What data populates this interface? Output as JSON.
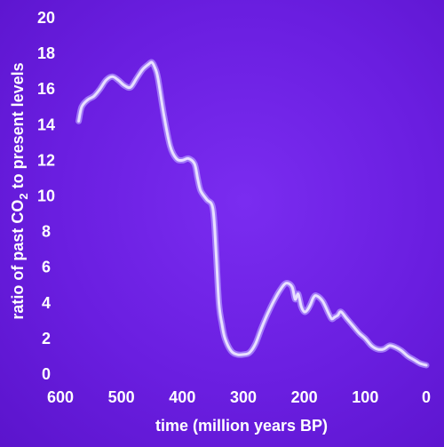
{
  "chart_data": {
    "type": "line",
    "title": "",
    "xlabel": "time (million years BP)",
    "ylabel_parts": {
      "before": "ratio of past CO",
      "subscript": "2",
      "after": " to present levels"
    },
    "xlim": [
      600,
      0
    ],
    "ylim": [
      0,
      20
    ],
    "x_ticks": [
      "600",
      "500",
      "400",
      "300",
      "200",
      "100",
      "0"
    ],
    "y_ticks": [
      "0",
      "2",
      "4",
      "6",
      "8",
      "10",
      "12",
      "14",
      "16",
      "18",
      "20"
    ],
    "grid": false,
    "legend": "none",
    "series": [
      {
        "x": [
          570,
          565,
          555,
          545,
          535,
          525,
          515,
          505,
          495,
          485,
          475,
          465,
          455,
          450,
          445,
          440,
          430,
          420,
          410,
          400,
          390,
          380,
          375,
          370,
          360,
          350,
          345,
          340,
          335,
          330,
          320,
          310,
          300,
          290,
          280,
          270,
          260,
          250,
          240,
          230,
          220,
          215,
          210,
          205,
          200,
          195,
          190,
          185,
          180,
          170,
          160,
          155,
          150,
          145,
          140,
          130,
          120,
          110,
          100,
          90,
          80,
          70,
          60,
          50,
          40,
          30,
          20,
          10,
          0
        ],
        "values": [
          14.2,
          15.0,
          15.4,
          15.6,
          16.0,
          16.5,
          16.7,
          16.5,
          16.2,
          16.1,
          16.6,
          17.1,
          17.4,
          17.5,
          17.2,
          16.6,
          14.5,
          12.8,
          12.1,
          12.0,
          12.1,
          11.8,
          11.0,
          10.3,
          9.8,
          9.3,
          7.0,
          4.0,
          2.8,
          2.0,
          1.3,
          1.1,
          1.1,
          1.2,
          1.7,
          2.6,
          3.4,
          4.1,
          4.7,
          5.1,
          4.9,
          4.2,
          4.5,
          3.8,
          3.5,
          3.6,
          3.9,
          4.3,
          4.4,
          4.1,
          3.4,
          3.1,
          3.2,
          3.3,
          3.5,
          3.1,
          2.7,
          2.3,
          2.0,
          1.6,
          1.4,
          1.4,
          1.6,
          1.5,
          1.3,
          1.0,
          0.8,
          0.6,
          0.5
        ]
      }
    ],
    "colors": {
      "background": "#6a1ee0",
      "line": "#e8e0ff",
      "line_glow": "#b79cff",
      "text": "#ffffff"
    }
  }
}
